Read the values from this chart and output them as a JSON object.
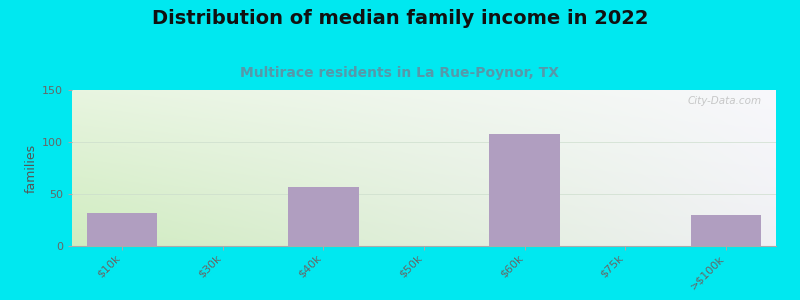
{
  "title": "Distribution of median family income in 2022",
  "subtitle": "Multirace residents in La Rue-Poynor, TX",
  "categories": [
    "$10k",
    "$30k",
    "$40k",
    "$50k",
    "$60k",
    "$75k",
    ">$100k"
  ],
  "values": [
    32,
    0,
    57,
    0,
    108,
    0,
    30
  ],
  "bar_color": "#b09ec0",
  "bg_color_topleft": "#e8f5e0",
  "bg_color_topright": "#f5f5f8",
  "bg_color_bottomleft": "#d8f0c8",
  "outer_bg": "#00e8f0",
  "ylabel": "families",
  "ylim": [
    0,
    150
  ],
  "yticks": [
    0,
    50,
    100,
    150
  ],
  "title_fontsize": 14,
  "subtitle_fontsize": 10,
  "subtitle_color": "#5599aa",
  "watermark": "City-Data.com",
  "tick_label_color": "#666666",
  "ylabel_color": "#555555"
}
